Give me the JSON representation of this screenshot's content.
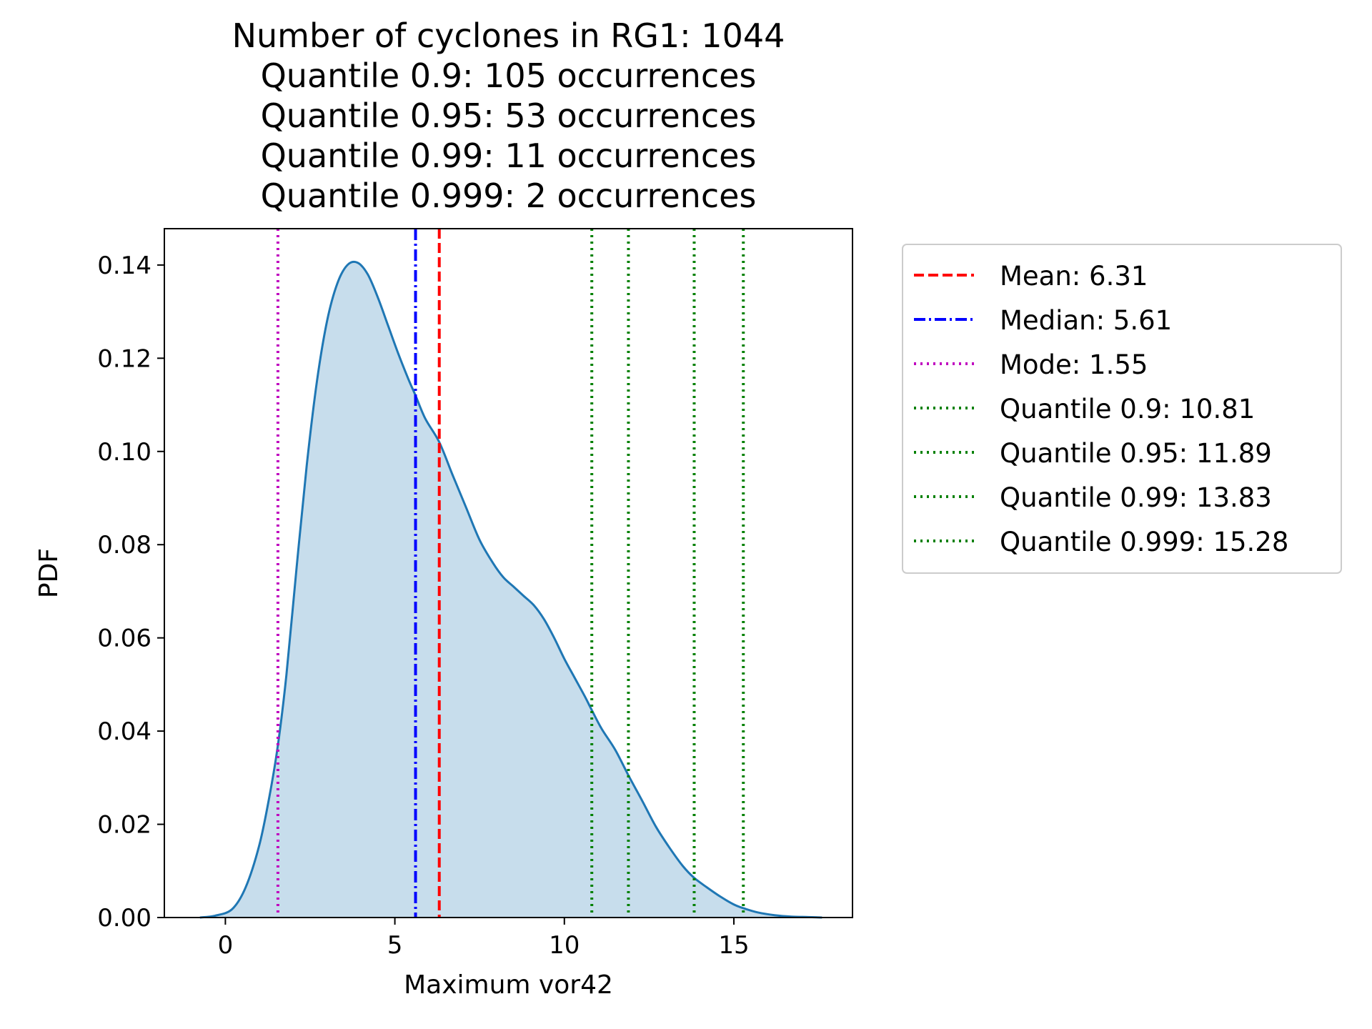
{
  "chart_data": {
    "type": "area",
    "title_lines": [
      "Number of cyclones in RG1: 1044",
      "Quantile 0.9: 105 occurrences",
      "Quantile 0.95: 53 occurrences",
      "Quantile 0.99: 11 occurrences",
      "Quantile 0.999: 2 occurrences"
    ],
    "xlabel": "Maximum vor42",
    "ylabel": "PDF",
    "xlim": [
      -1.8,
      18.5
    ],
    "ylim": [
      0,
      0.1478
    ],
    "x_ticks": [
      0,
      5,
      10,
      15
    ],
    "x_tick_labels": [
      "0",
      "5",
      "10",
      "15"
    ],
    "y_ticks": [
      0.0,
      0.02,
      0.04,
      0.06,
      0.08,
      0.1,
      0.12,
      0.14
    ],
    "y_tick_labels": [
      "0.00",
      "0.02",
      "0.04",
      "0.06",
      "0.08",
      "0.10",
      "0.12",
      "0.14"
    ],
    "grid": false,
    "legend_position": "outside-right",
    "series": [
      {
        "kind": "kde",
        "color": "#1f77b4",
        "fill_color": "#1f77b4",
        "fill_opacity": 0.25,
        "x": [
          -0.75,
          -0.3,
          0.2,
          0.6,
          1.0,
          1.3,
          1.55,
          1.8,
          2.1,
          2.4,
          2.7,
          3.0,
          3.3,
          3.6,
          3.9,
          4.2,
          4.5,
          4.8,
          5.1,
          5.4,
          5.61,
          5.9,
          6.31,
          6.7,
          7.1,
          7.5,
          7.9,
          8.2,
          8.5,
          8.8,
          9.1,
          9.4,
          9.7,
          10.0,
          10.3,
          10.6,
          10.81,
          11.1,
          11.5,
          11.89,
          12.3,
          12.7,
          13.1,
          13.5,
          13.83,
          14.2,
          14.6,
          15.0,
          15.28,
          15.7,
          16.2,
          16.7,
          17.2,
          17.6
        ],
        "y": [
          0.0,
          0.0004,
          0.0018,
          0.0065,
          0.0155,
          0.026,
          0.037,
          0.052,
          0.075,
          0.097,
          0.115,
          0.128,
          0.136,
          0.14,
          0.1405,
          0.138,
          0.133,
          0.127,
          0.121,
          0.1155,
          0.112,
          0.107,
          0.102,
          0.095,
          0.088,
          0.081,
          0.076,
          0.073,
          0.071,
          0.069,
          0.067,
          0.064,
          0.06,
          0.0555,
          0.0515,
          0.0475,
          0.0445,
          0.0405,
          0.036,
          0.0305,
          0.025,
          0.0195,
          0.015,
          0.011,
          0.0085,
          0.0065,
          0.0045,
          0.0028,
          0.002,
          0.0011,
          0.0005,
          0.0002,
          0.0001,
          0.0
        ]
      }
    ],
    "vlines": [
      {
        "label": "Mean: 6.31",
        "x": 6.31,
        "color": "#ff0000",
        "style": "dashed"
      },
      {
        "label": "Median: 5.61",
        "x": 5.61,
        "color": "#0000ff",
        "style": "dashdot"
      },
      {
        "label": "Mode: 1.55",
        "x": 1.55,
        "color": "#bf00bf",
        "style": "dotted"
      },
      {
        "label": "Quantile 0.9: 10.81",
        "x": 10.81,
        "color": "#008000",
        "style": "dotted"
      },
      {
        "label": "Quantile 0.95: 11.89",
        "x": 11.89,
        "color": "#008000",
        "style": "dotted"
      },
      {
        "label": "Quantile 0.99: 13.83",
        "x": 13.83,
        "color": "#008000",
        "style": "dotted"
      },
      {
        "label": "Quantile 0.999: 15.28",
        "x": 15.28,
        "color": "#008000",
        "style": "dotted"
      }
    ]
  }
}
